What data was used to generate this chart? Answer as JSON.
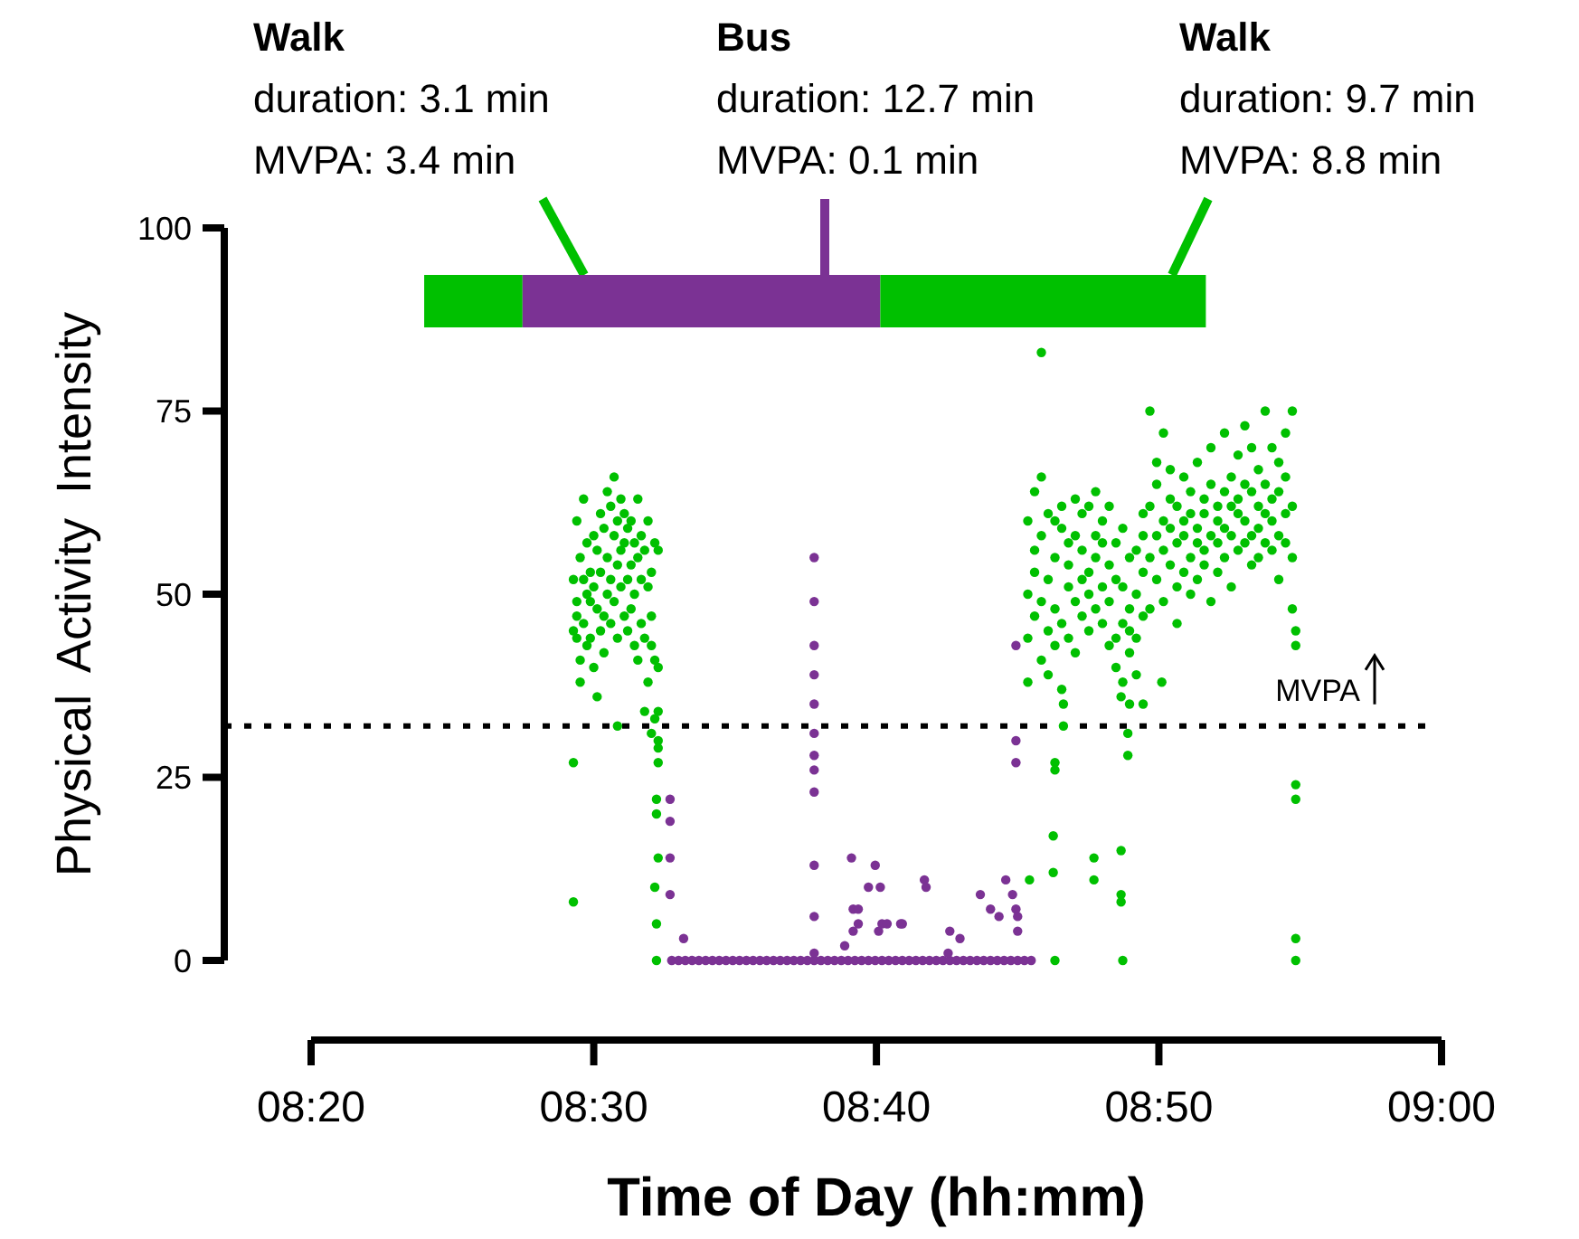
{
  "chart_data": {
    "type": "scatter",
    "xlabel": "Time of Day (hh:mm)",
    "ylabel": "Physical Activity Intensity",
    "marker": "circle",
    "grid": false,
    "xlim": [
      8.3333,
      9
    ],
    "xticks": [
      {
        "value": 8.3333,
        "label": "08:20"
      },
      {
        "value": 8.5,
        "label": "08:30"
      },
      {
        "value": 8.6667,
        "label": "08:40"
      },
      {
        "value": 8.8333,
        "label": "08:50"
      },
      {
        "value": 9,
        "label": "09:00"
      }
    ],
    "ylim": [
      0,
      100
    ],
    "yticks": [
      0,
      25,
      50,
      75,
      100
    ],
    "ref_lines": [
      {
        "axis": "y",
        "value": 32,
        "label": "MVPA",
        "line_style": "dotted",
        "color": "#000000"
      }
    ],
    "bands": [
      {
        "axis": "x",
        "from": 8.4,
        "to": 8.458,
        "label": "Walk\nduration: 3.1 min\nMVPA: 3.4 min",
        "color": "#00c000"
      },
      {
        "axis": "x",
        "from": 8.458,
        "to": 8.669,
        "label": "Bus\nduration: 12.7 min\nMVPA: 0.1 min",
        "color": "#7b3294"
      },
      {
        "axis": "x",
        "from": 8.669,
        "to": 8.861,
        "label": "Walk\nduration: 9.7 min\nMVPA: 8.8 min",
        "color": "#00c000"
      }
    ],
    "series": [
      {
        "color": "#00c000",
        "x": [
          8.488,
          8.488,
          8.488,
          8.488,
          8.49,
          8.49,
          8.49,
          8.49,
          8.492,
          8.492,
          8.492,
          8.494,
          8.494,
          8.494,
          8.496,
          8.496,
          8.496,
          8.498,
          8.498,
          8.498,
          8.5,
          8.5,
          8.5,
          8.502,
          8.502,
          8.502,
          8.504,
          8.504,
          8.504,
          8.506,
          8.506,
          8.506,
          8.508,
          8.508,
          8.508,
          8.51,
          8.51,
          8.51,
          8.512,
          8.512,
          8.512,
          8.514,
          8.514,
          8.514,
          8.514,
          8.516,
          8.516,
          8.516,
          8.518,
          8.518,
          8.518,
          8.52,
          8.52,
          8.52,
          8.522,
          8.522,
          8.522,
          8.524,
          8.524,
          8.524,
          8.526,
          8.526,
          8.526,
          8.528,
          8.528,
          8.528,
          8.53,
          8.53,
          8.53,
          8.532,
          8.532,
          8.532,
          8.534,
          8.534,
          8.534,
          8.534,
          8.536,
          8.536,
          8.536,
          8.536,
          8.537,
          8.537,
          8.537,
          8.537,
          8.538,
          8.538,
          8.538,
          8.538,
          8.538,
          8.538,
          8.538
        ],
        "values": [
          27,
          8,
          45,
          52,
          44,
          60,
          49,
          47,
          55,
          41,
          38,
          63,
          46,
          52,
          57,
          43,
          50,
          49,
          44,
          53,
          51,
          40,
          58,
          48,
          56,
          36,
          53,
          45,
          61,
          59,
          47,
          42,
          50,
          64,
          55,
          62,
          52,
          46,
          58,
          66,
          49,
          54,
          60,
          44,
          32,
          56,
          51,
          63,
          61,
          47,
          57,
          52,
          59,
          45,
          60,
          54,
          48,
          57,
          50,
          43,
          63,
          55,
          41,
          58,
          46,
          52,
          56,
          44,
          34,
          60,
          51,
          38,
          53,
          47,
          43,
          31,
          57,
          41,
          33,
          10,
          22,
          20,
          0,
          5,
          56,
          40,
          34,
          30,
          29,
          27,
          14
        ]
      },
      {
        "color": "#7b3294",
        "x": [
          8.546,
          8.55,
          8.554,
          8.558,
          8.562,
          8.566,
          8.57,
          8.574,
          8.578,
          8.582,
          8.586,
          8.59,
          8.594,
          8.598,
          8.602,
          8.606,
          8.61,
          8.614,
          8.618,
          8.622,
          8.626,
          8.63,
          8.634,
          8.638,
          8.642,
          8.646,
          8.65,
          8.654,
          8.658,
          8.662,
          8.666,
          8.67,
          8.674,
          8.678,
          8.682,
          8.686,
          8.69,
          8.694,
          8.698,
          8.702,
          8.706,
          8.71,
          8.714,
          8.718,
          8.722,
          8.726,
          8.73,
          8.734,
          8.738,
          8.742,
          8.746,
          8.75,
          8.754,
          8.758,
          8.545,
          8.545,
          8.545,
          8.545,
          8.553,
          8.63,
          8.63,
          8.63,
          8.63,
          8.63,
          8.63,
          8.63,
          8.63,
          8.63,
          8.63,
          8.63,
          8.63,
          8.648,
          8.652,
          8.653,
          8.653,
          8.656,
          8.656,
          8.662,
          8.666,
          8.668,
          8.669,
          8.67,
          8.673,
          8.681,
          8.682,
          8.695,
          8.696,
          8.709,
          8.71,
          8.716,
          8.728,
          8.734,
          8.739,
          8.743,
          8.747,
          8.749,
          8.749,
          8.749,
          8.749,
          8.75,
          8.75
        ],
        "values": [
          0,
          0,
          0,
          0,
          0,
          0,
          0,
          0,
          0,
          0,
          0,
          0,
          0,
          0,
          0,
          0,
          0,
          0,
          0,
          0,
          0,
          0,
          0,
          0,
          0,
          0,
          0,
          0,
          0,
          0,
          0,
          0,
          0,
          0,
          0,
          0,
          0,
          0,
          0,
          0,
          0,
          0,
          0,
          0,
          0,
          0,
          0,
          0,
          0,
          0,
          0,
          0,
          0,
          0,
          22,
          19,
          14,
          9,
          3,
          55,
          49,
          43,
          39,
          35,
          31,
          28,
          26,
          23,
          13,
          6,
          1,
          2,
          14,
          7,
          4,
          7,
          5,
          10,
          13,
          4,
          10,
          5,
          5,
          5,
          5,
          11,
          10,
          1,
          4,
          3,
          9,
          7,
          6,
          11,
          9,
          7,
          43,
          30,
          27,
          6,
          4
        ]
      },
      {
        "color": "#00c000",
        "x": [
          8.764,
          8.772,
          8.772,
          8.772,
          8.771,
          8.771,
          8.757,
          8.795,
          8.795,
          8.811,
          8.811,
          8.811,
          8.812,
          8.777,
          8.777,
          8.815,
          8.815,
          8.811,
          8.816,
          8.824,
          8.835,
          8.756,
          8.756,
          8.756,
          8.756,
          8.76,
          8.76,
          8.76,
          8.76,
          8.764,
          8.764,
          8.764,
          8.764,
          8.768,
          8.768,
          8.768,
          8.768,
          8.772,
          8.772,
          8.772,
          8.772,
          8.776,
          8.776,
          8.776,
          8.776,
          8.78,
          8.78,
          8.78,
          8.78,
          8.784,
          8.784,
          8.784,
          8.784,
          8.788,
          8.788,
          8.788,
          8.788,
          8.792,
          8.792,
          8.792,
          8.792,
          8.796,
          8.796,
          8.796,
          8.796,
          8.8,
          8.8,
          8.8,
          8.8,
          8.804,
          8.804,
          8.804,
          8.804,
          8.808,
          8.808,
          8.808,
          8.808,
          8.812,
          8.812,
          8.812,
          8.812,
          8.816,
          8.816,
          8.816,
          8.816,
          8.82,
          8.82,
          8.82,
          8.82,
          8.824,
          8.824,
          8.824,
          8.824,
          8.828,
          8.828,
          8.828,
          8.828,
          8.832,
          8.832,
          8.832,
          8.832,
          8.836,
          8.836,
          8.836,
          8.836,
          8.84,
          8.84,
          8.84,
          8.84,
          8.844,
          8.844,
          8.844,
          8.844,
          8.848,
          8.848,
          8.848,
          8.848,
          8.852,
          8.852,
          8.852,
          8.852,
          8.856,
          8.856,
          8.856,
          8.856,
          8.86,
          8.86,
          8.86,
          8.86,
          8.864,
          8.864,
          8.864,
          8.864,
          8.868,
          8.868,
          8.868,
          8.868,
          8.872,
          8.872,
          8.872,
          8.872,
          8.876,
          8.876,
          8.876,
          8.876,
          8.88,
          8.88,
          8.88,
          8.88,
          8.884,
          8.884,
          8.884,
          8.884,
          8.888,
          8.888,
          8.888,
          8.888,
          8.892,
          8.892,
          8.892,
          8.892,
          8.896,
          8.896,
          8.896,
          8.896,
          8.9,
          8.9,
          8.9,
          8.9,
          8.904,
          8.904,
          8.904,
          8.904,
          8.908,
          8.908,
          8.908,
          8.908,
          8.912,
          8.912,
          8.912,
          8.912,
          8.914,
          8.914,
          8.914,
          8.914,
          8.914,
          8.914
        ],
        "values": [
          83,
          0,
          27,
          26,
          12,
          17,
          11,
          14,
          11,
          15,
          9,
          8,
          0,
          32,
          35,
          31,
          28,
          36,
          35,
          35,
          38,
          50,
          60,
          44,
          38,
          56,
          47,
          64,
          53,
          66,
          58,
          41,
          49,
          52,
          61,
          45,
          39,
          55,
          48,
          43,
          60,
          59,
          46,
          62,
          37,
          51,
          57,
          44,
          54,
          63,
          49,
          58,
          42,
          56,
          52,
          47,
          61,
          62,
          45,
          53,
          50,
          58,
          55,
          64,
          48,
          60,
          51,
          46,
          57,
          54,
          62,
          49,
          43,
          57,
          44,
          52,
          40,
          51,
          46,
          38,
          59,
          48,
          55,
          42,
          45,
          56,
          44,
          50,
          39,
          61,
          53,
          47,
          58,
          75,
          55,
          62,
          48,
          68,
          58,
          52,
          65,
          72,
          60,
          49,
          56,
          63,
          54,
          67,
          59,
          57,
          62,
          51,
          46,
          66,
          53,
          60,
          58,
          61,
          55,
          64,
          50,
          59,
          68,
          52,
          57,
          63,
          56,
          61,
          54,
          70,
          58,
          65,
          49,
          62,
          57,
          60,
          53,
          72,
          64,
          55,
          59,
          66,
          58,
          62,
          51,
          69,
          61,
          56,
          63,
          73,
          60,
          57,
          65,
          64,
          70,
          58,
          54,
          67,
          62,
          59,
          55,
          75,
          61,
          65,
          57,
          70,
          63,
          56,
          60,
          68,
          64,
          58,
          52,
          72,
          66,
          61,
          57,
          75,
          62,
          55,
          48,
          24,
          22,
          3,
          0,
          45,
          43
        ]
      }
    ]
  }
}
